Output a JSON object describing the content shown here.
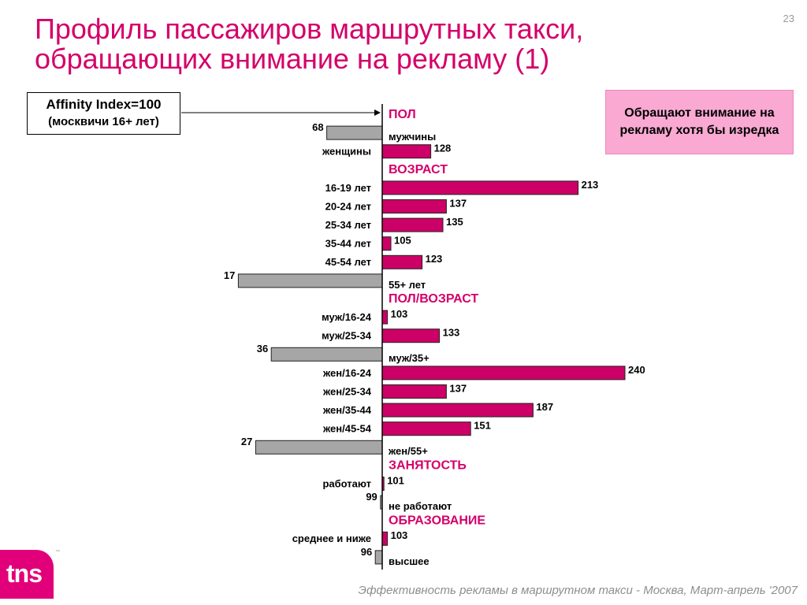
{
  "slide": {
    "title": "Профиль пассажиров маршрутных такси, обращающих внимание на рекламу (1)",
    "number": "23",
    "affinity_line1": "Affinity Index=100",
    "affinity_line2": "(москвичи 16+ лет)",
    "legend_text": "Обращают внимание на рекламу хотя бы изредка",
    "footer": "Эффективность рекламы в маршрутном такси - Москва, Март-апрель '2007",
    "logo_text": "tns",
    "logo_tm": "™"
  },
  "colors": {
    "accent": "#d4006a",
    "above_bar": "#cc0066",
    "below_bar": "#a6a6a6",
    "legend_bg": "#f9a9d2"
  },
  "chart_data": {
    "type": "bar",
    "orientation": "horizontal",
    "baseline": 100,
    "groups": [
      {
        "title": "ПОЛ",
        "items": [
          {
            "label": "мужчины",
            "value": 68
          },
          {
            "label": "женщины",
            "value": 128
          }
        ]
      },
      {
        "title": "ВОЗРАСТ",
        "items": [
          {
            "label": "16-19 лет",
            "value": 213
          },
          {
            "label": "20-24 лет",
            "value": 137
          },
          {
            "label": "25-34 лет",
            "value": 135
          },
          {
            "label": "35-44 лет",
            "value": 105
          },
          {
            "label": "45-54 лет",
            "value": 123
          },
          {
            "label": "55+ лет",
            "value": 17
          }
        ]
      },
      {
        "title": "ПОЛ/ВОЗРАСТ",
        "items": [
          {
            "label": "муж/16-24",
            "value": 103
          },
          {
            "label": "муж/25-34",
            "value": 133
          },
          {
            "label": "муж/35+",
            "value": 36
          },
          {
            "label": "жен/16-24",
            "value": 240
          },
          {
            "label": "жен/25-34",
            "value": 137
          },
          {
            "label": "жен/35-44",
            "value": 187
          },
          {
            "label": "жен/45-54",
            "value": 151
          },
          {
            "label": "жен/55+",
            "value": 27
          }
        ]
      },
      {
        "title": "ЗАНЯТОСТЬ",
        "items": [
          {
            "label": "работают",
            "value": 101
          },
          {
            "label": "не работают",
            "value": 99
          }
        ]
      },
      {
        "title": "ОБРАЗОВАНИЕ",
        "items": [
          {
            "label": "среднее и ниже",
            "value": 103
          },
          {
            "label": "высшее",
            "value": 96
          }
        ]
      }
    ]
  }
}
